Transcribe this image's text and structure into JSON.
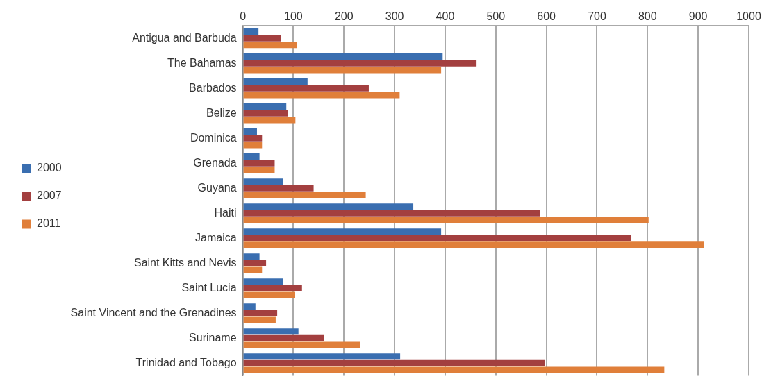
{
  "chart_data": {
    "type": "bar",
    "orientation": "horizontal",
    "categories": [
      "Antigua and Barbuda",
      "The Bahamas",
      "Barbados",
      "Belize",
      "Dominica",
      "Grenada",
      "Guyana",
      "Haiti",
      "Jamaica",
      "Saint Kitts and Nevis",
      "Saint Lucia",
      "Saint Vincent and the Grenadines",
      "Suriname",
      "Trinidad and Tobago"
    ],
    "series": [
      {
        "name": "2000",
        "color": "#3a6eb0",
        "values": [
          31,
          395,
          128,
          86,
          28,
          33,
          80,
          337,
          392,
          33,
          80,
          25,
          110,
          311
        ]
      },
      {
        "name": "2007",
        "color": "#a33f3f",
        "values": [
          76,
          462,
          249,
          89,
          38,
          63,
          140,
          587,
          768,
          46,
          117,
          68,
          160,
          597
        ]
      },
      {
        "name": "2011",
        "color": "#e07f3a",
        "values": [
          107,
          392,
          310,
          104,
          38,
          63,
          243,
          802,
          912,
          38,
          103,
          65,
          232,
          833
        ]
      }
    ],
    "xlim": [
      0,
      1000
    ],
    "xticks": [
      0,
      100,
      200,
      300,
      400,
      500,
      600,
      700,
      800,
      900,
      1000
    ],
    "grid": "x",
    "legend": "left"
  }
}
